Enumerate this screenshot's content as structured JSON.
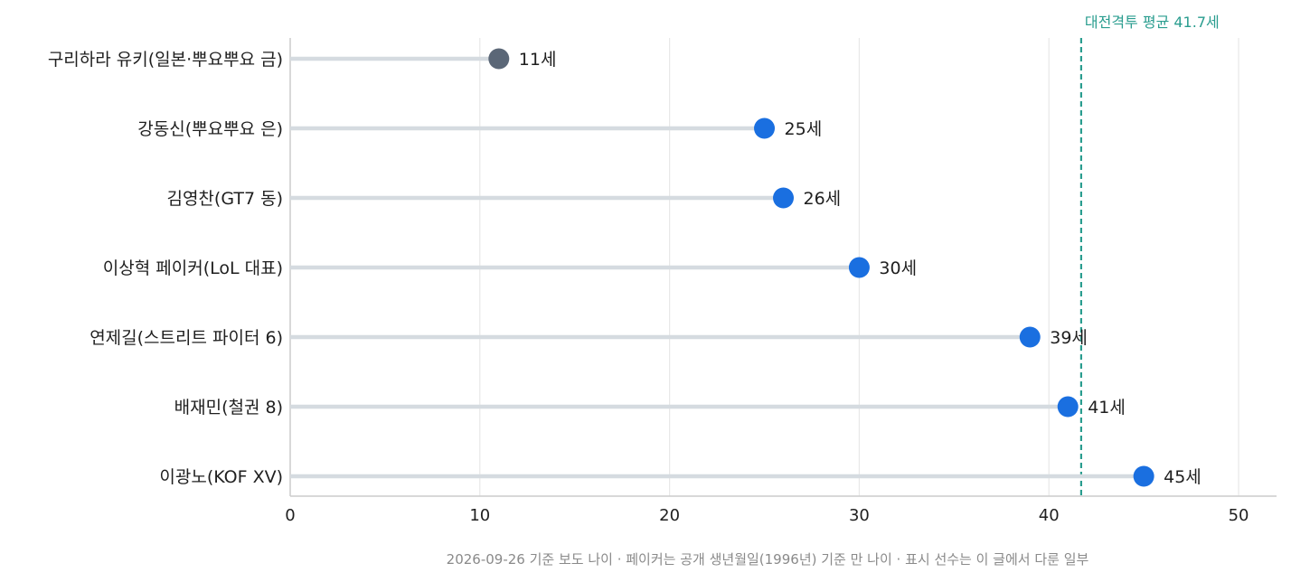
{
  "chart_data": {
    "type": "lollipop",
    "categories": [
      "구리하라 유키(일본·뿌요뿌요 금)",
      "강동신(뿌요뿌요 은)",
      "김영찬(GT7 동)",
      "이상혁 페이커(LoL 대표)",
      "연제길(스트리트 파이터 6)",
      "배재민(철권 8)",
      "이광노(KOF XV)"
    ],
    "values": [
      11,
      25,
      26,
      30,
      39,
      41,
      45
    ],
    "value_labels": [
      "11세",
      "25세",
      "26세",
      "30세",
      "39세",
      "41세",
      "45세"
    ],
    "highlight_index": 0,
    "colors": {
      "highlight": "#5b6777",
      "default": "#1a6fe0",
      "stem": "#d5dbe0",
      "reference": "#2a9d8f",
      "grid": "#e8e8e8",
      "axis": "#cccccc"
    },
    "xlim": [
      0,
      52
    ],
    "xticks": [
      0,
      10,
      20,
      30,
      40,
      50
    ],
    "xtick_labels": [
      "0",
      "10",
      "20",
      "30",
      "40",
      "50"
    ],
    "reference_line": {
      "value": 41.7,
      "label": "대전격투 평균 41.7세"
    },
    "grid": "vertical",
    "footnote": "2026-09-26 기준 보도 나이 · 페이커는 공개 생년월일(1996년) 기준 만 나이 · 표시 선수는 이 글에서 다룬 일부"
  }
}
